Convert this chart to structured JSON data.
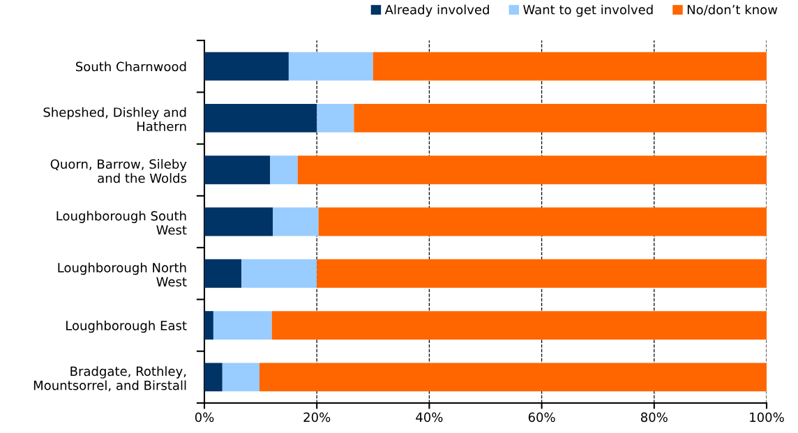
{
  "chart_data": {
    "type": "bar",
    "orientation": "horizontal",
    "stacked": true,
    "categories": [
      "South Charnwood",
      "Shepshed, Dishley and\nHathern",
      "Quorn, Barrow, Sileby\nand the Wolds",
      "Loughborough South\nWest",
      "Loughborough North\nWest",
      "Loughborough East",
      "Bradgate, Rothley,\nMountsorrel, and Birstall"
    ],
    "series": [
      {
        "name": "Already involved",
        "color": "#003366",
        "values": [
          15.0,
          20.0,
          11.7,
          12.2,
          6.6,
          1.6,
          3.2
        ]
      },
      {
        "name": "Want to get involved",
        "color": "#99ccff",
        "values": [
          15.0,
          6.6,
          4.9,
          8.1,
          13.4,
          10.4,
          6.6
        ]
      },
      {
        "name": "No/don’t know",
        "color": "#ff6600",
        "values": [
          70.0,
          73.4,
          83.4,
          79.7,
          80.0,
          88.0,
          90.2
        ]
      }
    ],
    "xlim": [
      0,
      100
    ],
    "xticks": [
      {
        "value": 0,
        "label": "0%"
      },
      {
        "value": 20,
        "label": "20%"
      },
      {
        "value": 40,
        "label": "40%"
      },
      {
        "value": 60,
        "label": "60%"
      },
      {
        "value": 80,
        "label": "80%"
      },
      {
        "value": 100,
        "label": "100%"
      }
    ],
    "grid": "x",
    "line_style": "dashed",
    "legend": "top right"
  }
}
